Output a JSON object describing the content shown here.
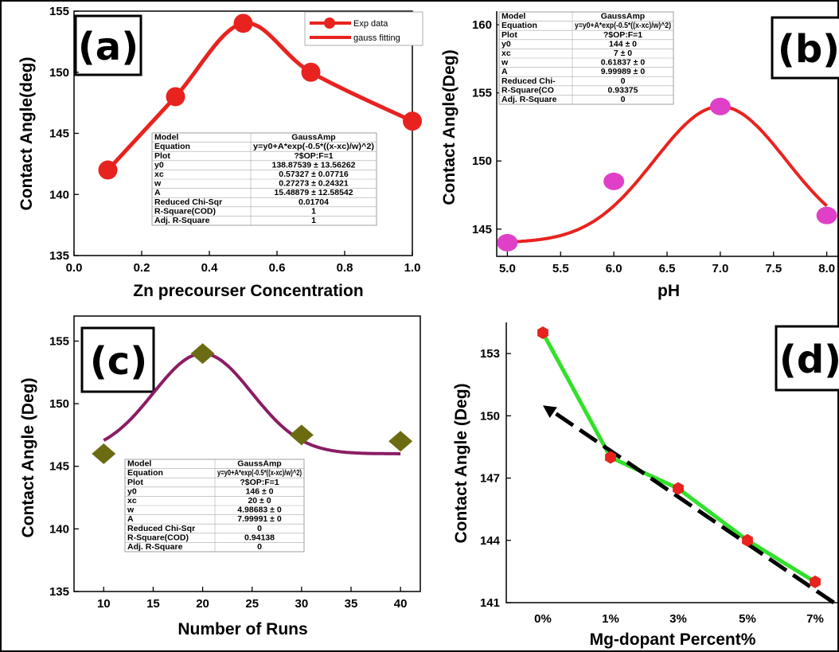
{
  "colors": {
    "a_series": "#e8231f",
    "b_points": "#e040c8",
    "b_curve": "#e8231f",
    "c_points": "#6b6b12",
    "c_curve": "#8a1d64",
    "d_points": "#e8231f",
    "d_line": "#33e02a",
    "d_trend": "#000000"
  },
  "chart_data": [
    {
      "panel": "a",
      "type": "line",
      "label": "(a)",
      "xlabel": "Zn precourser Concentration",
      "ylabel": "Contact Angle(deg)",
      "xlim": [
        0.0,
        1.0
      ],
      "ylim": [
        135,
        155
      ],
      "xticks": [
        "0.0",
        "0.2",
        "0.4",
        "0.6",
        "0.8",
        "1.0"
      ],
      "yticks": [
        "135",
        "140",
        "145",
        "150",
        "155"
      ],
      "legend": [
        "Exp data",
        "gauss fitting"
      ],
      "legend_position": "top-right",
      "x": [
        0.1,
        0.3,
        0.5,
        0.7,
        1.0
      ],
      "y": [
        142,
        148,
        154,
        150,
        146
      ],
      "fit": {
        "type": "gauss",
        "y0": 138.87539,
        "xc": 0.57327,
        "w": 0.27273,
        "A": 15.48879
      },
      "table": [
        [
          "Model",
          "GaussAmp"
        ],
        [
          "Equation",
          "y=y0+A*exp(-0.5*((x-xc)/w)^2)"
        ],
        [
          "Plot",
          "?$OP:F=1"
        ],
        [
          "y0",
          "138.87539 ± 13.56262"
        ],
        [
          "xc",
          "0.57327 ± 0.07716"
        ],
        [
          "w",
          "0.27273 ± 0.24321"
        ],
        [
          "A",
          "15.48879 ± 12.58542"
        ],
        [
          "Reduced Chi-Sqr",
          "0.01704"
        ],
        [
          "R-Square(COD)",
          "1"
        ],
        [
          "Adj. R-Square",
          "1"
        ]
      ]
    },
    {
      "panel": "b",
      "type": "scatter",
      "label": "(b)",
      "xlabel": "pH",
      "ylabel": "Contact Angle(Deg)",
      "xlim": [
        4.9,
        8.1
      ],
      "ylim": [
        143,
        161
      ],
      "xticks": [
        "5.0",
        "5.5",
        "6.0",
        "6.5",
        "7.0",
        "7.5",
        "8.0"
      ],
      "yticks": [
        "145",
        "150",
        "155",
        "160"
      ],
      "x": [
        5.0,
        6.0,
        7.0,
        8.0
      ],
      "y": [
        144,
        148.5,
        154,
        146
      ],
      "fit": {
        "type": "gauss",
        "y0": 144,
        "xc": 7,
        "w": 0.61837,
        "A": 9.99989
      },
      "table": [
        [
          "Model",
          "GaussAmp"
        ],
        [
          "Equation",
          "y=y0+A*exp(-0.5*((x-xc)/w)^2)"
        ],
        [
          "Plot",
          "?$OP:F=1"
        ],
        [
          "y0",
          "144 ± 0"
        ],
        [
          "xc",
          "7 ± 0"
        ],
        [
          "w",
          "0.61837 ± 0"
        ],
        [
          "A",
          "9.99989 ± 0"
        ],
        [
          "Reduced Chi-",
          "0"
        ],
        [
          "R-Square(CO",
          "0.93375"
        ],
        [
          "Adj. R-Square",
          "0"
        ]
      ]
    },
    {
      "panel": "c",
      "type": "scatter",
      "label": "(c)",
      "xlabel": "Number of Runs",
      "ylabel": "Contact Angle (Deg)",
      "xlim": [
        7,
        42
      ],
      "ylim": [
        135,
        157
      ],
      "xticks": [
        "10",
        "15",
        "20",
        "25",
        "30",
        "35",
        "40"
      ],
      "yticks": [
        "135",
        "140",
        "145",
        "150",
        "155"
      ],
      "x": [
        10,
        20,
        30,
        40
      ],
      "y": [
        146,
        154,
        147.5,
        147
      ],
      "fit": {
        "type": "gauss",
        "y0": 146,
        "xc": 20,
        "w": 4.98683,
        "A": 7.99991
      },
      "table": [
        [
          "Model",
          "GaussAmp"
        ],
        [
          "Equation",
          "y=y0+A*exp(-0.5*((x-xc)/w)^2)"
        ],
        [
          "Plot",
          "?$OP:F=1"
        ],
        [
          "y0",
          "146 ± 0"
        ],
        [
          "xc",
          "20 ± 0"
        ],
        [
          "w",
          "4.98683 ± 0"
        ],
        [
          "A",
          "7.99991 ± 0"
        ],
        [
          "Reduced Chi-Sqr",
          "0"
        ],
        [
          "R-Square(COD)",
          "0.94138"
        ],
        [
          "Adj. R-Square",
          "0"
        ]
      ]
    },
    {
      "panel": "d",
      "type": "line",
      "label": "(d)",
      "xlabel": "Mg-dopant Percent%",
      "ylabel": "Contact Angle (Deg)",
      "ylim": [
        141,
        154.5
      ],
      "categories": [
        "0%",
        "1%",
        "3%",
        "5%",
        "7%"
      ],
      "yticks": [
        "141",
        "144",
        "147",
        "150",
        "153"
      ],
      "values": [
        154,
        148,
        146.5,
        144,
        142
      ],
      "trend": {
        "from": [
          0.0,
          150.5
        ],
        "to": [
          4.3,
          141.0
        ]
      }
    }
  ]
}
